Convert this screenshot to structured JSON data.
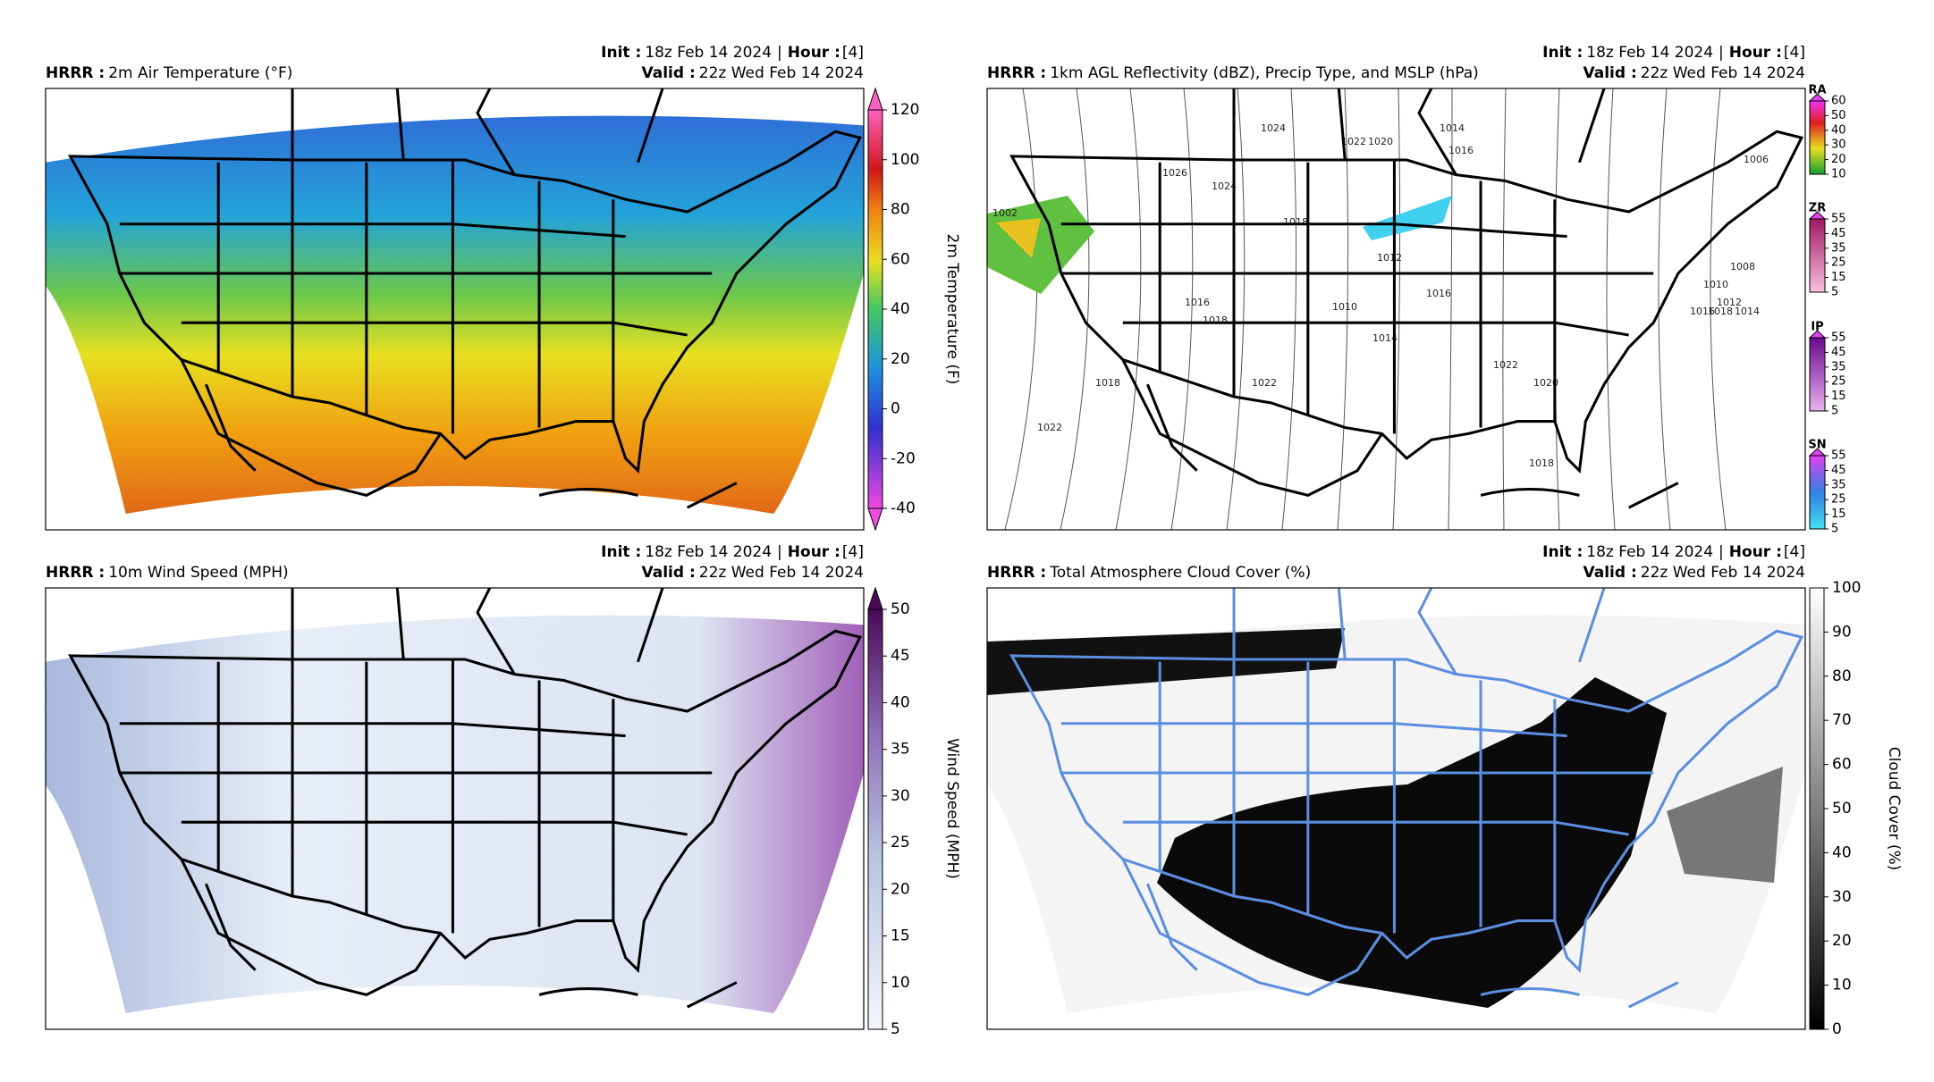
{
  "panels": [
    {
      "model": "HRRR :",
      "title": "2m Air Temperature (°F)",
      "init_label": "Init :",
      "init": "18z Feb 14 2024",
      "separator": "|",
      "hour_label": "Hour :",
      "hour": "[4]",
      "valid_label": "Valid :",
      "valid": "22z Wed Feb 14 2024",
      "colorbar": {
        "label": "2m Temperature (F)",
        "ticks": [
          120,
          100,
          80,
          60,
          40,
          20,
          0,
          -20,
          -40
        ]
      }
    },
    {
      "model": "HRRR :",
      "title": "1km AGL Reflectivity (dBZ), Precip Type, and MSLP (hPa)",
      "init_label": "Init :",
      "init": "18z Feb 14 2024",
      "separator": "|",
      "hour_label": "Hour :",
      "hour": "[4]",
      "valid_label": "Valid :",
      "valid": "22z Wed Feb 14 2024",
      "colorbars": [
        {
          "name": "RA",
          "ticks": [
            60,
            50,
            40,
            30,
            20,
            10
          ]
        },
        {
          "name": "ZR",
          "ticks": [
            55,
            45,
            35,
            25,
            15,
            5
          ]
        },
        {
          "name": "IP",
          "ticks": [
            55,
            45,
            35,
            25,
            15,
            5
          ]
        },
        {
          "name": "SN",
          "ticks": [
            55,
            45,
            35,
            25,
            15,
            5
          ]
        }
      ],
      "isobar_labels": [
        1024,
        1022,
        1020,
        1014,
        1016,
        1026,
        1024,
        1018,
        1012,
        1010,
        1016,
        1018,
        1016,
        1014,
        1022,
        1020,
        1022,
        1018,
        1002,
        1006,
        1008,
        1010,
        1012,
        1014,
        1016,
        1018,
        1022,
        1018
      ]
    },
    {
      "model": "HRRR :",
      "title": "10m Wind Speed (MPH)",
      "init_label": "Init :",
      "init": "18z Feb 14 2024",
      "separator": "|",
      "hour_label": "Hour :",
      "hour": "[4]",
      "valid_label": "Valid :",
      "valid": "22z Wed Feb 14 2024",
      "colorbar": {
        "label": "Wind Speed (MPH)",
        "ticks": [
          50,
          45,
          40,
          35,
          30,
          25,
          20,
          15,
          10,
          5
        ]
      }
    },
    {
      "model": "HRRR :",
      "title": "Total Atmosphere Cloud Cover (%)",
      "init_label": "Init :",
      "init": "18z Feb 14 2024",
      "separator": "|",
      "hour_label": "Hour :",
      "hour": "[4]",
      "valid_label": "Valid :",
      "valid": "22z Wed Feb 14 2024",
      "colorbar": {
        "label": "Cloud Cover (%)",
        "ticks": [
          100,
          90,
          80,
          70,
          60,
          50,
          40,
          30,
          20,
          10,
          0
        ]
      }
    }
  ]
}
